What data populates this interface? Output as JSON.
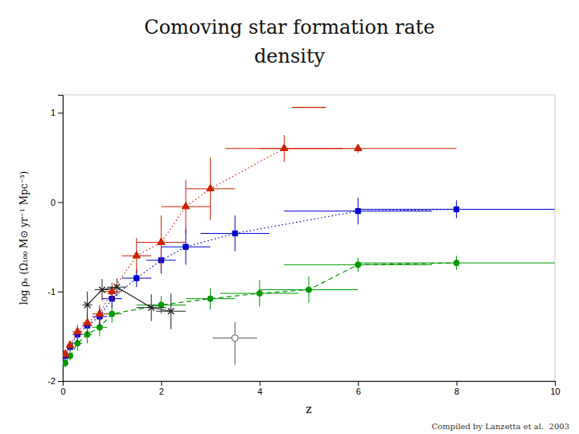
{
  "chart_data": {
    "type": "line",
    "title": [
      "Comoving star formation rate",
      "density"
    ],
    "annotations": [
      "Compiled by Lanzetta et al.  2003"
    ],
    "x_label": "z",
    "y_label": "log ρₛ (Ω₁₀₀ M⊙ yr⁻¹ Mpc⁻³)",
    "xlim": [
      0,
      10
    ],
    "ylim": [
      -2,
      1.2
    ],
    "xticks": [
      0,
      2,
      4,
      6,
      8,
      10
    ],
    "yticks": [
      -2,
      -1,
      0,
      1
    ],
    "series": [
      {
        "color": "#009900",
        "marker": "circle",
        "line_style": "dashed",
        "x": [
          0.05,
          0.15,
          0.3,
          0.5,
          0.75,
          1.0,
          2.0,
          3.0,
          4.0,
          5.0,
          6.0,
          8.0
        ],
        "values": [
          -1.8,
          -1.72,
          -1.58,
          -1.48,
          -1.4,
          -1.25,
          -1.15,
          -1.08,
          -1.02,
          -0.98,
          -0.7,
          -0.68
        ],
        "xerr_lo": [
          0.03,
          0.05,
          0.1,
          0.1,
          0.15,
          0.2,
          0.5,
          0.5,
          0.8,
          1.0,
          1.5,
          2.0
        ],
        "xerr_hi": [
          0.03,
          0.05,
          0.1,
          0.1,
          0.15,
          0.2,
          0.5,
          0.5,
          0.8,
          1.0,
          1.5,
          2.0
        ],
        "yerr_lo": [
          0.05,
          0.05,
          0.08,
          0.1,
          0.1,
          0.1,
          0.1,
          0.12,
          0.15,
          0.15,
          0.08,
          0.08
        ],
        "yerr_hi": [
          0.05,
          0.05,
          0.08,
          0.1,
          0.1,
          0.1,
          0.1,
          0.12,
          0.15,
          0.15,
          0.08,
          0.08
        ]
      },
      {
        "color": "#0000cc",
        "marker": "square",
        "line_style": "dotted",
        "x": [
          0.05,
          0.15,
          0.3,
          0.5,
          0.75,
          1.0,
          1.5,
          2.0,
          2.5,
          3.5,
          6.0,
          8.0
        ],
        "values": [
          -1.72,
          -1.62,
          -1.48,
          -1.38,
          -1.28,
          -1.08,
          -0.85,
          -0.65,
          -0.5,
          -0.35,
          -0.1,
          -0.08
        ],
        "xerr_lo": [
          0.03,
          0.05,
          0.1,
          0.1,
          0.15,
          0.2,
          0.3,
          0.3,
          0.5,
          0.7,
          1.5,
          2.0
        ],
        "xerr_hi": [
          0.03,
          0.05,
          0.1,
          0.1,
          0.15,
          0.2,
          0.3,
          0.3,
          0.5,
          0.7,
          1.5,
          2.0
        ],
        "yerr_lo": [
          0.05,
          0.05,
          0.08,
          0.1,
          0.1,
          0.1,
          0.1,
          0.15,
          0.2,
          0.2,
          0.15,
          0.1
        ],
        "yerr_hi": [
          0.05,
          0.05,
          0.08,
          0.1,
          0.1,
          0.1,
          0.1,
          0.15,
          0.2,
          0.2,
          0.15,
          0.1
        ]
      },
      {
        "color": "#cc2200",
        "marker": "triangle",
        "line_style": "dotted",
        "x": [
          0.05,
          0.15,
          0.3,
          0.5,
          0.75,
          1.0,
          1.5,
          2.0,
          2.5,
          3.0,
          4.5,
          6.0
        ],
        "values": [
          -1.7,
          -1.6,
          -1.45,
          -1.35,
          -1.25,
          -1.0,
          -0.6,
          -0.45,
          -0.05,
          0.15,
          0.6,
          0.6
        ],
        "xerr_lo": [
          0.03,
          0.05,
          0.1,
          0.1,
          0.15,
          0.2,
          0.3,
          0.5,
          0.5,
          0.5,
          1.2,
          2.0
        ],
        "xerr_hi": [
          0.03,
          0.05,
          0.1,
          0.1,
          0.15,
          0.2,
          0.3,
          0.5,
          0.5,
          0.5,
          1.2,
          2.0
        ],
        "yerr_lo": [
          0.05,
          0.05,
          0.08,
          0.1,
          0.1,
          0.1,
          0.2,
          0.3,
          0.3,
          0.35,
          0.15,
          0.05
        ],
        "yerr_hi": [
          0.05,
          0.05,
          0.08,
          0.1,
          0.1,
          0.1,
          0.2,
          0.3,
          0.3,
          0.35,
          0.15,
          0.05
        ]
      },
      {
        "color": "#222222",
        "marker": "x",
        "line_style": "solid",
        "x": [
          0.5,
          0.8,
          1.1,
          1.8,
          2.2
        ],
        "values": [
          -1.15,
          -0.98,
          -0.95,
          -1.18,
          -1.22
        ],
        "xerr_lo": [
          0.1,
          0.15,
          0.2,
          0.3,
          0.3
        ],
        "xerr_hi": [
          0.1,
          0.15,
          0.2,
          0.3,
          0.3
        ],
        "yerr_lo": [
          0.15,
          0.12,
          0.1,
          0.15,
          0.2
        ],
        "yerr_hi": [
          0.15,
          0.12,
          0.1,
          0.15,
          0.2
        ]
      },
      {
        "color": "#555555",
        "marker": "circle-open",
        "line_style": "none",
        "x": [
          3.5
        ],
        "values": [
          -1.52
        ],
        "xerr_lo": [
          0.45
        ],
        "xerr_hi": [
          0.45
        ],
        "yerr_lo": [
          0.3
        ],
        "yerr_hi": [
          0.18
        ]
      },
      {
        "color": "#cc2200",
        "marker": "none",
        "line_style": "solid",
        "x": [
          4.65,
          5.35
        ],
        "values": [
          1.06,
          1.06
        ]
      }
    ]
  }
}
